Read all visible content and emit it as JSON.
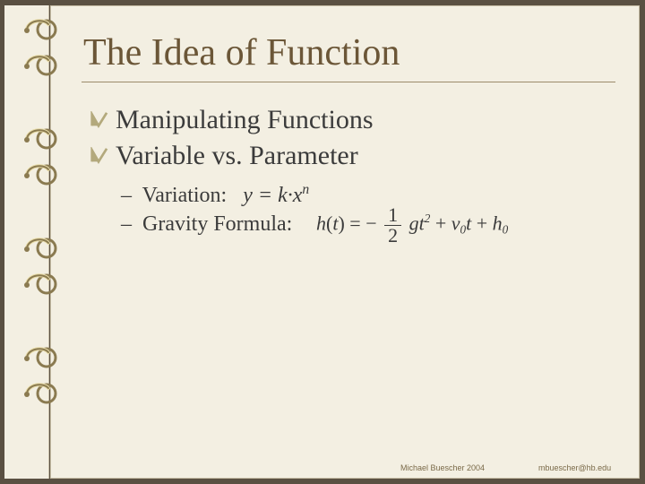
{
  "colors": {
    "page_bg": "#5a5042",
    "slide_bg": "#f3efe2",
    "title_color": "#6b5637",
    "text_color": "#3b3b3b",
    "rule_color": "#9c8b6b",
    "footer_color": "#7a6a49",
    "ring_dark": "#8a7a50",
    "ring_light": "#e8dca8",
    "check_fill": "#b3a97c"
  },
  "title": "The Idea of Function",
  "bullets": [
    {
      "text": "Manipulating Functions"
    },
    {
      "text": "Variable vs. Parameter"
    }
  ],
  "subs": [
    {
      "label": "Variation:",
      "formula_lhs": "y",
      "formula_rhs": "k·x",
      "formula_exp": "n"
    },
    {
      "label": "Gravity Formula:"
    }
  ],
  "gravity": {
    "lhs_fn": "h",
    "lhs_arg": "t",
    "frac_num": "1",
    "frac_den": "2",
    "g": "g",
    "t": "t",
    "t_pow": "2",
    "v": "v",
    "v_sub": "0",
    "h": "h",
    "h_sub": "0"
  },
  "footer": {
    "author": "Michael Buescher 2004",
    "email": "mbuescher@hb.edu"
  },
  "ring_positions": [
    20,
    60,
    142,
    182,
    264,
    304,
    386,
    426
  ]
}
